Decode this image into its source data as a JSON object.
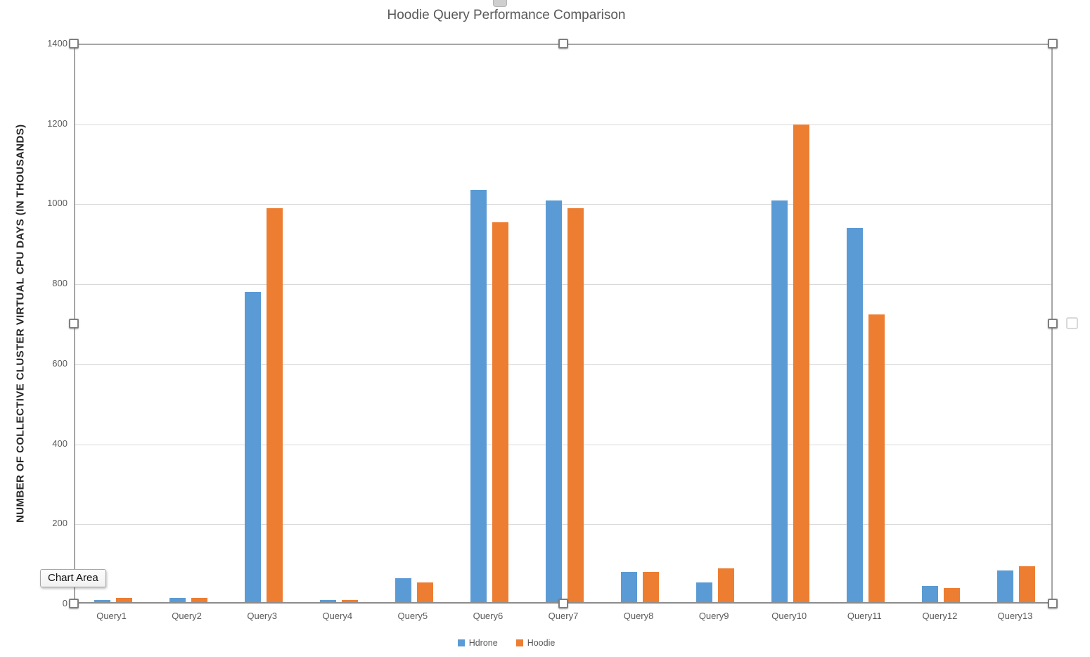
{
  "chart_data": {
    "type": "bar",
    "title": "Hoodie Query Performance Comparison",
    "xlabel": "",
    "ylabel": "NUMBER OF COLLECTIVE CLUSTER VIRTUAL CPU DAYS (IN THOUSANDS)",
    "categories": [
      "Query1",
      "Query2",
      "Query3",
      "Query4",
      "Query5",
      "Query6",
      "Query7",
      "Query8",
      "Query9",
      "Query10",
      "Query11",
      "Query12",
      "Query13"
    ],
    "series": [
      {
        "name": "Hdrone",
        "color": "#5B9BD5",
        "values": [
          5,
          10,
          775,
          5,
          60,
          1030,
          1005,
          75,
          50,
          1005,
          935,
          40,
          80
        ]
      },
      {
        "name": "Hoodie",
        "color": "#ED7D31",
        "values": [
          10,
          10,
          985,
          5,
          50,
          950,
          985,
          75,
          85,
          1195,
          720,
          35,
          90
        ]
      }
    ],
    "ylim": [
      0,
      1400
    ],
    "ytick_step": 200,
    "grid": "horizontal",
    "legend_position": "bottom"
  },
  "tooltip": {
    "label": "Chart Area"
  },
  "colors": {
    "series_hdrone": "#5B9BD5",
    "series_hoodie": "#ED7D31",
    "title_text": "#595959",
    "axis_text": "#595959",
    "gridline": "#d9d9d9",
    "selection_border": "#a6a6a6"
  }
}
